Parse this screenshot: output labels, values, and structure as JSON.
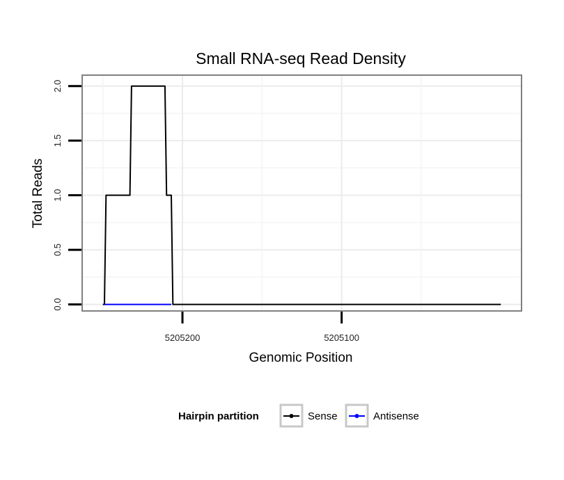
{
  "chart_data": {
    "type": "line",
    "title": "Small RNA-seq Read Density",
    "xlabel": "Genomic Position",
    "ylabel": "Total Reads",
    "x_reversed": true,
    "xlim": [
      5205263,
      5204987
    ],
    "ylim": [
      -0.06,
      2.1
    ],
    "y_ticks": [
      0.0,
      0.5,
      1.0,
      1.5,
      2.0
    ],
    "y_tick_labels": [
      "0.0",
      "0.5",
      "1.0",
      "1.5",
      "2.0"
    ],
    "x_ticks": [
      5205200,
      5205100
    ],
    "x_tick_labels": [
      "5205200",
      "5205100"
    ],
    "grid": true,
    "legend": {
      "title": "Hairpin partition",
      "placement": "bottom",
      "entries": [
        {
          "name": "Sense",
          "color": "#000000"
        },
        {
          "name": "Antisense",
          "color": "#0000ff"
        }
      ]
    },
    "series": [
      {
        "name": "Sense",
        "color": "#000000",
        "points": [
          [
            5205250,
            0
          ],
          [
            5205249,
            0
          ],
          [
            5205248,
            1
          ],
          [
            5205233,
            1
          ],
          [
            5205232,
            2
          ],
          [
            5205211,
            2
          ],
          [
            5205210,
            1
          ],
          [
            5205207,
            1
          ],
          [
            5205206,
            0
          ],
          [
            5205000,
            0
          ]
        ]
      },
      {
        "name": "Antisense",
        "color": "#0000ff",
        "points": [
          [
            5205249,
            0
          ],
          [
            5205207,
            0
          ]
        ]
      }
    ]
  }
}
